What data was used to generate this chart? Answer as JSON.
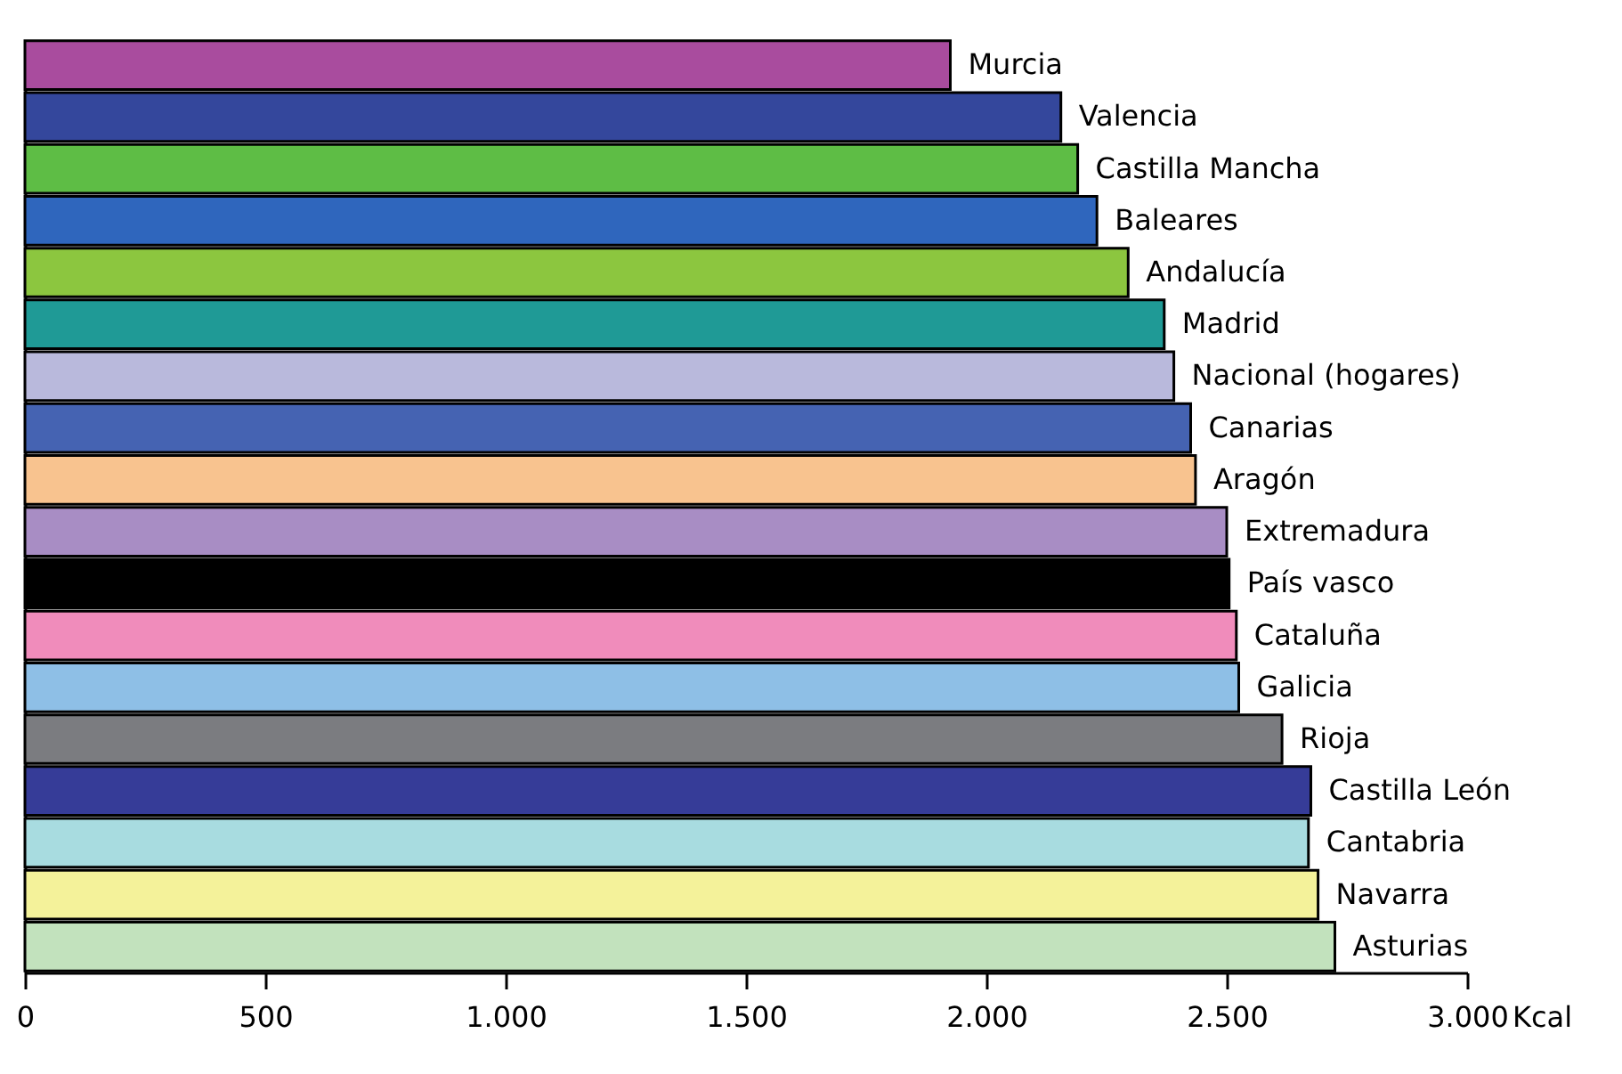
{
  "chart_data": {
    "type": "bar",
    "orientation": "horizontal",
    "xlabel": "Kcal",
    "categories": [
      "Murcia",
      "Valencia",
      "Castilla Mancha",
      "Baleares",
      "Andalucía",
      "Madrid",
      "Nacional (hogares)",
      "Canarias",
      "Aragón",
      "Extremadura",
      "País vasco",
      "Cataluña",
      "Galicia",
      "Rioja",
      "Castilla León",
      "Cantabria",
      "Navarra",
      "Asturias"
    ],
    "values": [
      1925,
      2155,
      2190,
      2230,
      2295,
      2370,
      2390,
      2425,
      2435,
      2500,
      2505,
      2520,
      2525,
      2615,
      2675,
      2670,
      2690,
      2725
    ],
    "colors": [
      "#a94c9e",
      "#34479c",
      "#5ebd45",
      "#2f66bd",
      "#8cc63f",
      "#1f9a96",
      "#b9b9dc",
      "#4563b2",
      "#f8c38f",
      "#a88dc4",
      "#000000",
      "#f08cbb",
      "#8ebfe6",
      "#7b7c80",
      "#363c98",
      "#a8dce0",
      "#f4f29a",
      "#c2e2bd"
    ],
    "xlim": [
      0,
      3000
    ],
    "xticks": [
      {
        "value": 0,
        "label": "0"
      },
      {
        "value": 500,
        "label": "500"
      },
      {
        "value": 1000,
        "label": "1.000"
      },
      {
        "value": 1500,
        "label": "1.500"
      },
      {
        "value": 2000,
        "label": "2.000"
      },
      {
        "value": 2500,
        "label": "2.500"
      },
      {
        "value": 3000,
        "label": "3.000"
      }
    ],
    "grid": false
  }
}
